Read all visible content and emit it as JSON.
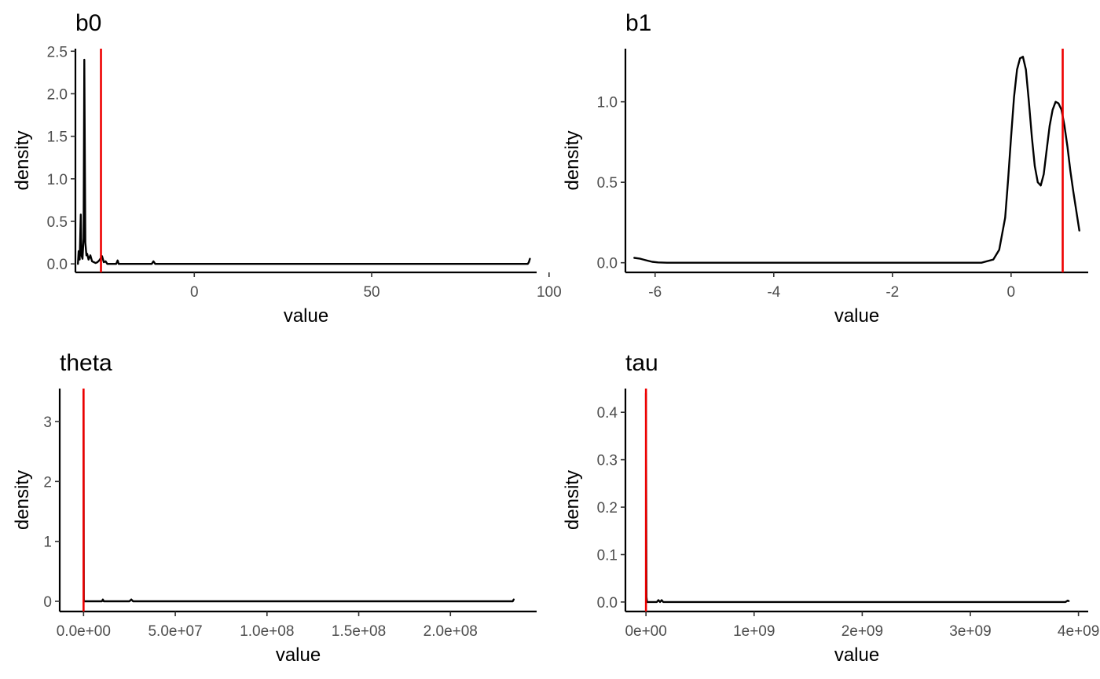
{
  "chart_data": [
    {
      "type": "line",
      "title": "b0",
      "xlabel": "value",
      "ylabel": "density",
      "xlim": [
        -33.5,
        96.5
      ],
      "ylim": [
        -0.1,
        2.53
      ],
      "xticks": [
        0,
        50,
        100
      ],
      "xtick_labels": [
        "0",
        "50",
        "100"
      ],
      "yticks": [
        0.0,
        0.5,
        1.0,
        1.5,
        2.0,
        2.5
      ],
      "ytick_labels": [
        "0.0",
        "0.5",
        "1.0",
        "1.5",
        "2.0",
        "2.5"
      ],
      "vline": -26.3,
      "line_color": "#000000",
      "vline_color": "#ee0000",
      "series": [
        {
          "x": [
            -32.8,
            -32.6,
            -32.3,
            -32.0,
            -31.8,
            -31.5,
            -31.2,
            -31.0,
            -30.7,
            -30.4,
            -30.2,
            -29.8,
            -29.3,
            -28.8,
            -28.3,
            -27.8,
            -27.3,
            -26.8,
            -26.0,
            -25.5,
            -25.0,
            -24.5,
            -24.0,
            -22.0,
            -21.6,
            -21.3,
            -21.0,
            -20.5,
            -12.0,
            -11.5,
            -11.0,
            -10.5,
            -10.0,
            0.0,
            50.0,
            94.0,
            94.3,
            94.6
          ],
          "y": [
            0.0,
            0.15,
            0.05,
            0.58,
            0.1,
            0.06,
            0.3,
            2.4,
            0.25,
            0.1,
            0.12,
            0.05,
            0.1,
            0.03,
            0.02,
            0.01,
            0.02,
            0.04,
            0.09,
            0.02,
            0.03,
            0.0,
            0.0,
            0.0,
            0.04,
            0.0,
            0.0,
            0.0,
            0.0,
            0.03,
            0.0,
            0.0,
            0.0,
            0.0,
            0.0,
            0.0,
            0.02,
            0.06
          ]
        }
      ]
    },
    {
      "type": "line",
      "title": "b1",
      "xlabel": "value",
      "ylabel": "density",
      "xlim": [
        -6.5,
        1.3
      ],
      "ylim": [
        -0.06,
        1.33
      ],
      "xticks": [
        -6,
        -4,
        -2,
        0
      ],
      "xtick_labels": [
        "-6",
        "-4",
        "-2",
        "0"
      ],
      "yticks": [
        0.0,
        0.5,
        1.0
      ],
      "ytick_labels": [
        "0.0",
        "0.5",
        "1.0"
      ],
      "vline": 0.87,
      "line_color": "#000000",
      "vline_color": "#ee0000",
      "series": [
        {
          "x": [
            -6.35,
            -6.25,
            -6.15,
            -6.05,
            -5.95,
            -5.8,
            -5.6,
            -5.0,
            -4.0,
            -3.0,
            -2.0,
            -1.0,
            -0.5,
            -0.3,
            -0.2,
            -0.1,
            -0.05,
            0.0,
            0.05,
            0.1,
            0.15,
            0.2,
            0.25,
            0.3,
            0.35,
            0.4,
            0.45,
            0.5,
            0.55,
            0.6,
            0.65,
            0.7,
            0.75,
            0.8,
            0.85,
            0.9,
            0.95,
            1.0,
            1.05,
            1.1,
            1.15
          ],
          "y": [
            0.03,
            0.025,
            0.015,
            0.006,
            0.002,
            0.0,
            0.0,
            0.0,
            0.0,
            0.0,
            0.0,
            0.0,
            0.0,
            0.02,
            0.08,
            0.28,
            0.52,
            0.78,
            1.03,
            1.2,
            1.27,
            1.28,
            1.2,
            1.0,
            0.78,
            0.6,
            0.5,
            0.48,
            0.55,
            0.7,
            0.85,
            0.95,
            1.0,
            0.99,
            0.95,
            0.85,
            0.72,
            0.57,
            0.44,
            0.32,
            0.2
          ]
        }
      ]
    },
    {
      "type": "line",
      "title": "theta",
      "xlabel": "value",
      "ylabel": "density",
      "xlim": [
        -13000000,
        247000000
      ],
      "ylim": [
        -0.17,
        3.55
      ],
      "xticks": [
        0,
        50000000,
        100000000,
        150000000,
        200000000
      ],
      "xtick_labels": [
        "0.0e+00",
        "5.0e+07",
        "1.0e+08",
        "1.5e+08",
        "2.0e+08"
      ],
      "yticks": [
        0,
        1,
        2,
        3
      ],
      "ytick_labels": [
        "0",
        "1",
        "2",
        "3"
      ],
      "vline": 0,
      "line_color": "#000000",
      "vline_color": "#ee0000",
      "series": [
        {
          "x": [
            0,
            150000,
            300000,
            1000000,
            10000000,
            10500000,
            11000000,
            25000000,
            26000000,
            27000000,
            100000000,
            200000000,
            234000000,
            234500000
          ],
          "y": [
            3.5,
            0.02,
            0.0,
            0.0,
            0.0,
            0.03,
            0.0,
            0.0,
            0.03,
            0.0,
            0.0,
            0.0,
            0.0,
            0.03
          ]
        }
      ]
    },
    {
      "type": "line",
      "title": "tau",
      "xlabel": "value",
      "ylabel": "density",
      "xlim": [
        -190000000,
        4090000000
      ],
      "ylim": [
        -0.02,
        0.45
      ],
      "xticks": [
        0,
        1000000000,
        2000000000,
        3000000000,
        4000000000
      ],
      "xtick_labels": [
        "0e+00",
        "1e+09",
        "2e+09",
        "3e+09",
        "4e+09"
      ],
      "yticks": [
        0.0,
        0.1,
        0.2,
        0.3,
        0.4
      ],
      "ytick_labels": [
        "0.0",
        "0.1",
        "0.2",
        "0.3",
        "0.4"
      ],
      "vline": 0,
      "line_color": "#000000",
      "vline_color": "#ee0000",
      "series": [
        {
          "x": [
            0,
            5000000,
            10000000,
            30000000,
            100000000,
            115000000,
            130000000,
            145000000,
            160000000,
            1000000000,
            3000000000,
            3880000000,
            3900000000,
            3910000000
          ],
          "y": [
            0.44,
            0.01,
            0.0,
            0.0,
            0.0,
            0.004,
            0.0,
            0.004,
            0.0,
            0.0,
            0.0,
            0.0,
            0.003,
            0.002
          ]
        }
      ]
    }
  ]
}
